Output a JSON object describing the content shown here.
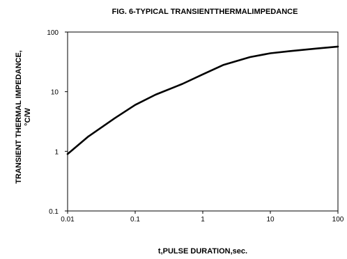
{
  "chart_data": {
    "type": "line",
    "title": "FIG. 6-TYPICAL TRANSIENTTHERMALIMPEDANCE",
    "xlabel": "t,PULSE DURATION,sec.",
    "ylabel": [
      "TRANSIENT THERMAL IMPEDANCE,",
      "°C/W"
    ],
    "xscale": "log",
    "yscale": "log",
    "xlim": [
      0.01,
      100
    ],
    "ylim": [
      0.1,
      100
    ],
    "xticks": [
      0.01,
      0.1,
      1,
      10,
      100
    ],
    "xtick_labels": [
      "0.01",
      "0.1",
      "1",
      "10",
      "100"
    ],
    "yticks": [
      0.1,
      1,
      10,
      100
    ],
    "ytick_labels": [
      "0.1",
      "1",
      "10",
      "100"
    ],
    "grid": false,
    "series": [
      {
        "color": "#000000",
        "x": [
          0.01,
          0.02,
          0.05,
          0.1,
          0.2,
          0.5,
          1,
          2,
          5,
          10,
          20,
          50,
          100
        ],
        "y": [
          0.9,
          1.75,
          3.6,
          6.0,
          8.9,
          13.5,
          19.5,
          28,
          38,
          44,
          48,
          53,
          57
        ]
      }
    ]
  }
}
